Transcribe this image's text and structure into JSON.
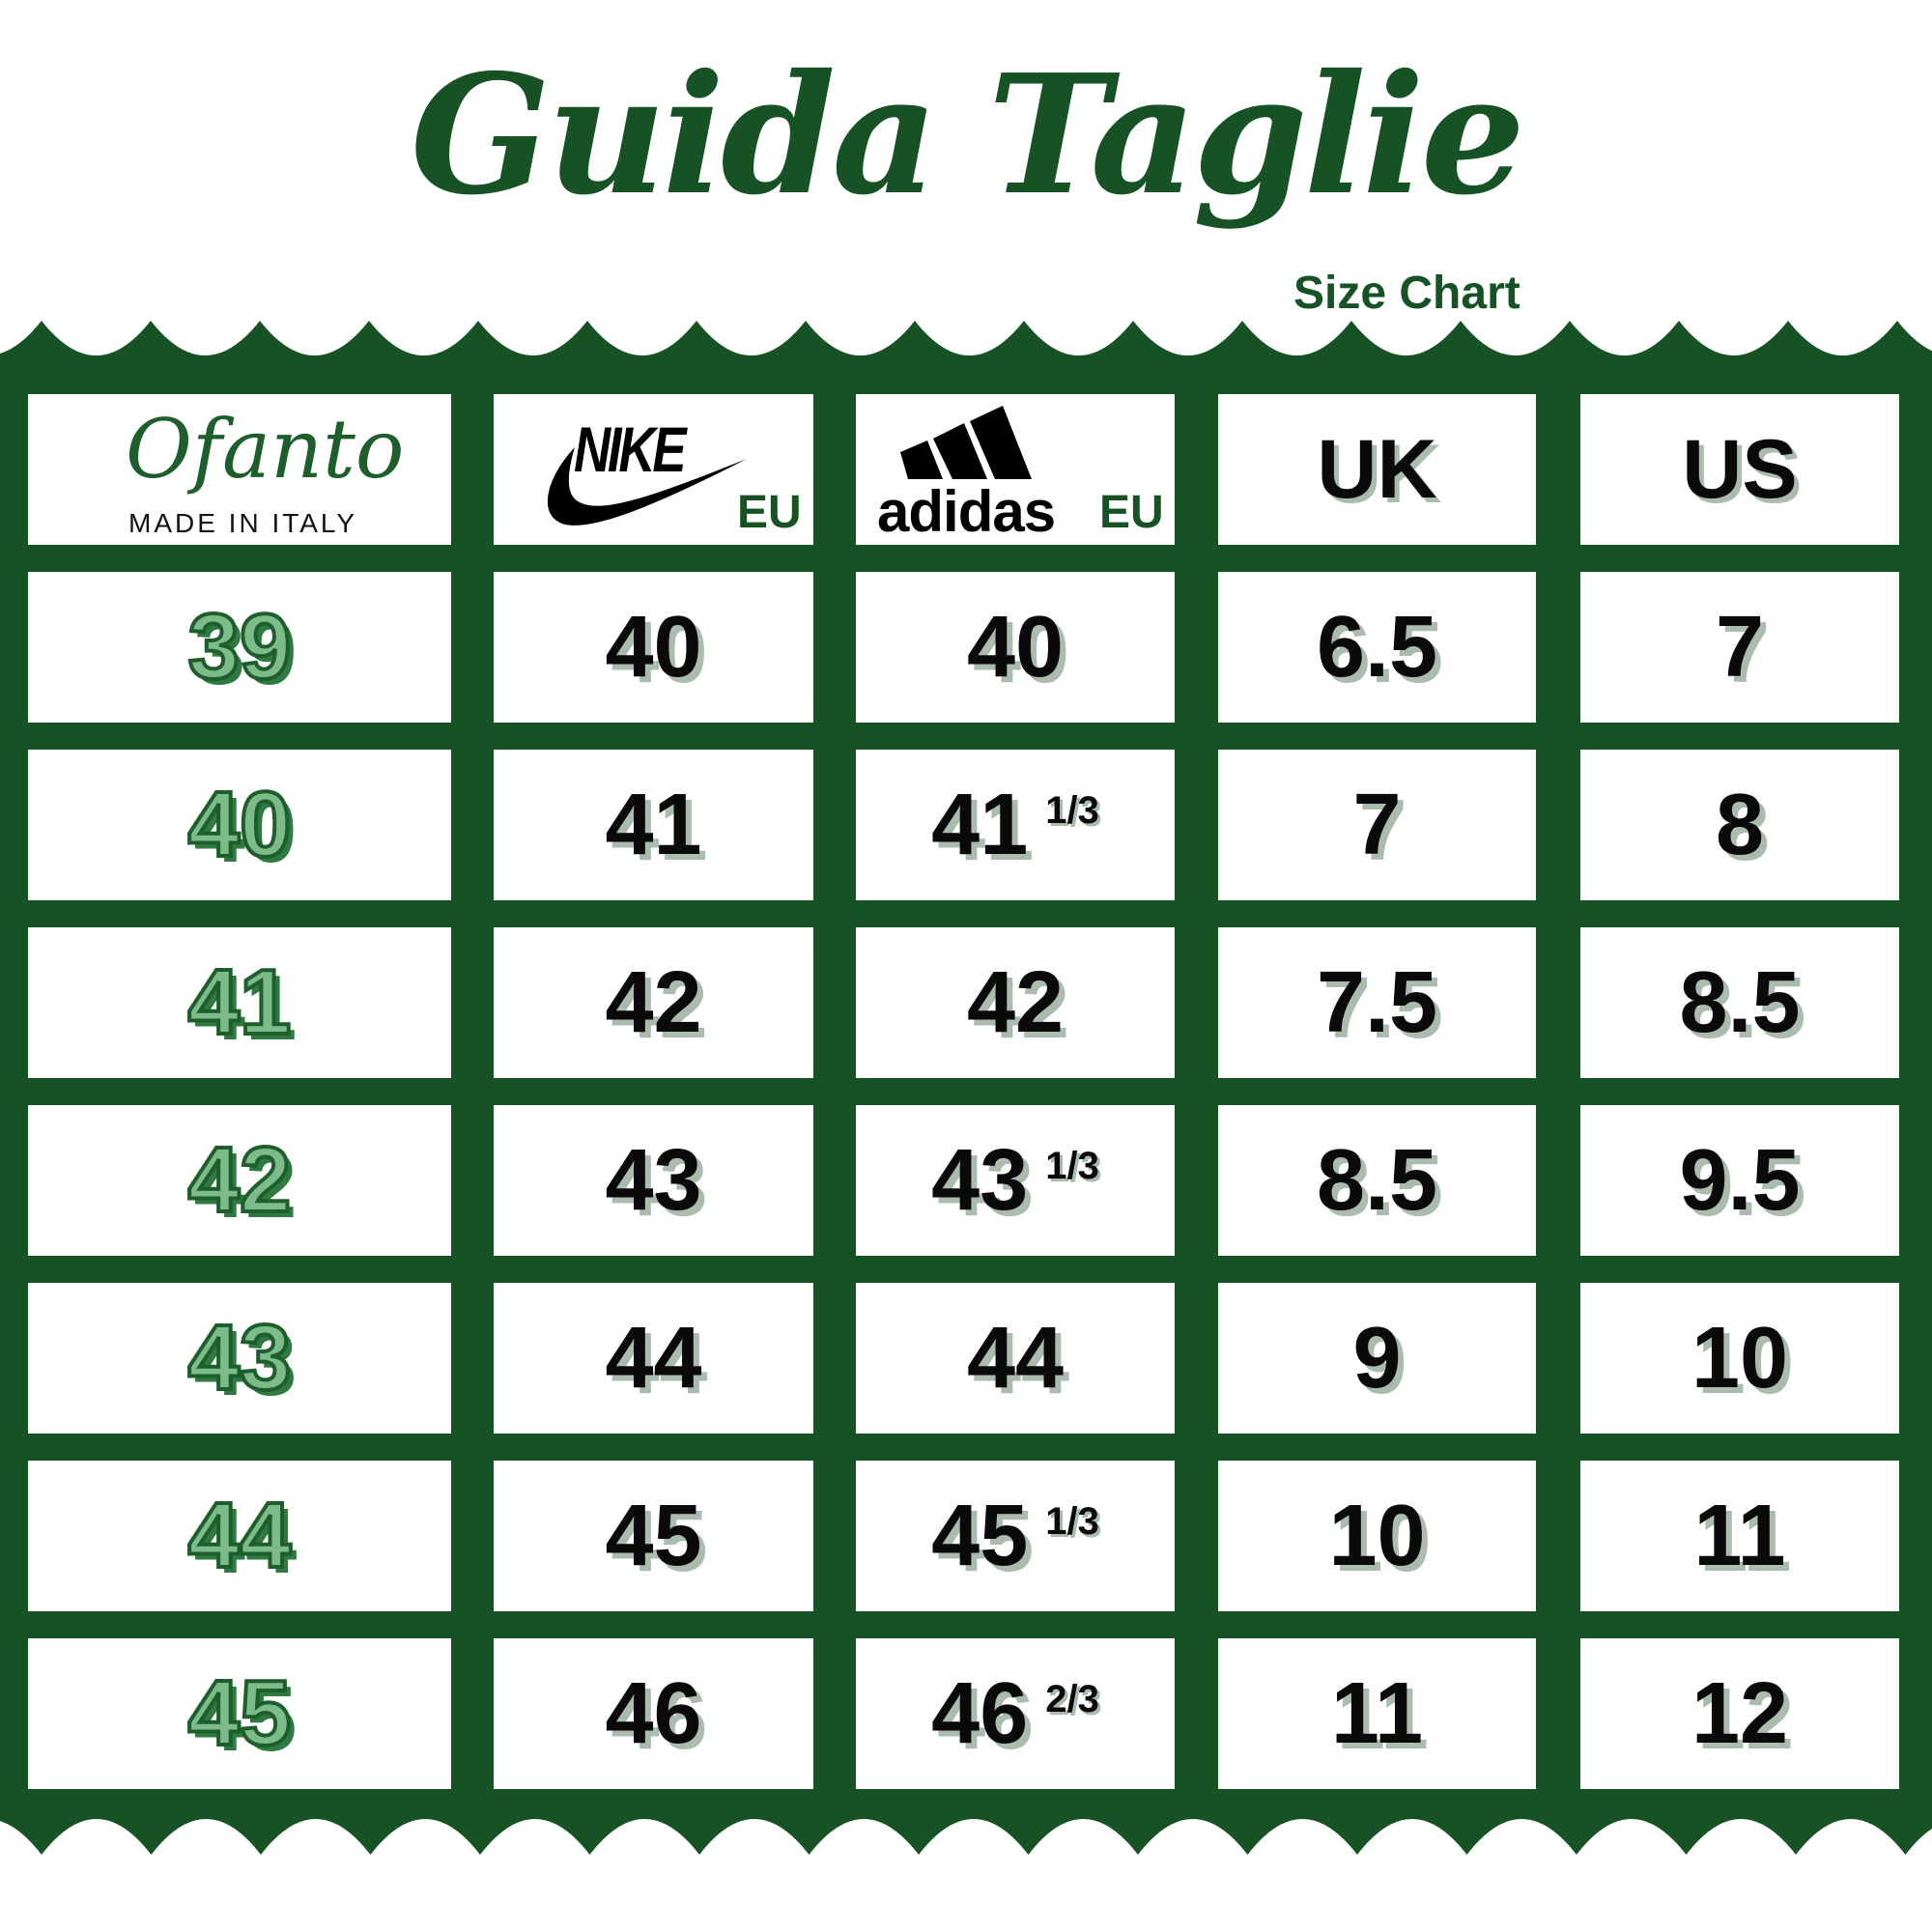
{
  "title": "Guida Taglie",
  "subtitle": "Size Chart",
  "colors": {
    "brand_green": "#165224",
    "ofanto_fill": "#7dbb8a",
    "shadow": "#a9bcae"
  },
  "header": {
    "ofanto": {
      "brand": "Ofanto",
      "tagline": "MADE IN ITALY"
    },
    "nike": {
      "brand": "NIKE",
      "unit": "EU",
      "icon": "swoosh-icon"
    },
    "adidas": {
      "brand": "adidas",
      "unit": "EU",
      "icon": "adidas-stripes-icon"
    },
    "uk": "UK",
    "us": "US"
  },
  "rows": [
    {
      "ofanto": "39",
      "nike": "40",
      "adidas": "40",
      "adidas_frac": "",
      "uk": "6.5",
      "us": "7"
    },
    {
      "ofanto": "40",
      "nike": "41",
      "adidas": "41",
      "adidas_frac": "1/3",
      "uk": "7",
      "us": "8"
    },
    {
      "ofanto": "41",
      "nike": "42",
      "adidas": "42",
      "adidas_frac": "",
      "uk": "7.5",
      "us": "8.5"
    },
    {
      "ofanto": "42",
      "nike": "43",
      "adidas": "43",
      "adidas_frac": "1/3",
      "uk": "8.5",
      "us": "9.5"
    },
    {
      "ofanto": "43",
      "nike": "44",
      "adidas": "44",
      "adidas_frac": "",
      "uk": "9",
      "us": "10"
    },
    {
      "ofanto": "44",
      "nike": "45",
      "adidas": "45",
      "adidas_frac": "1/3",
      "uk": "10",
      "us": "11"
    },
    {
      "ofanto": "45",
      "nike": "46",
      "adidas": "46",
      "adidas_frac": "2/3",
      "uk": "11",
      "us": "12"
    }
  ]
}
